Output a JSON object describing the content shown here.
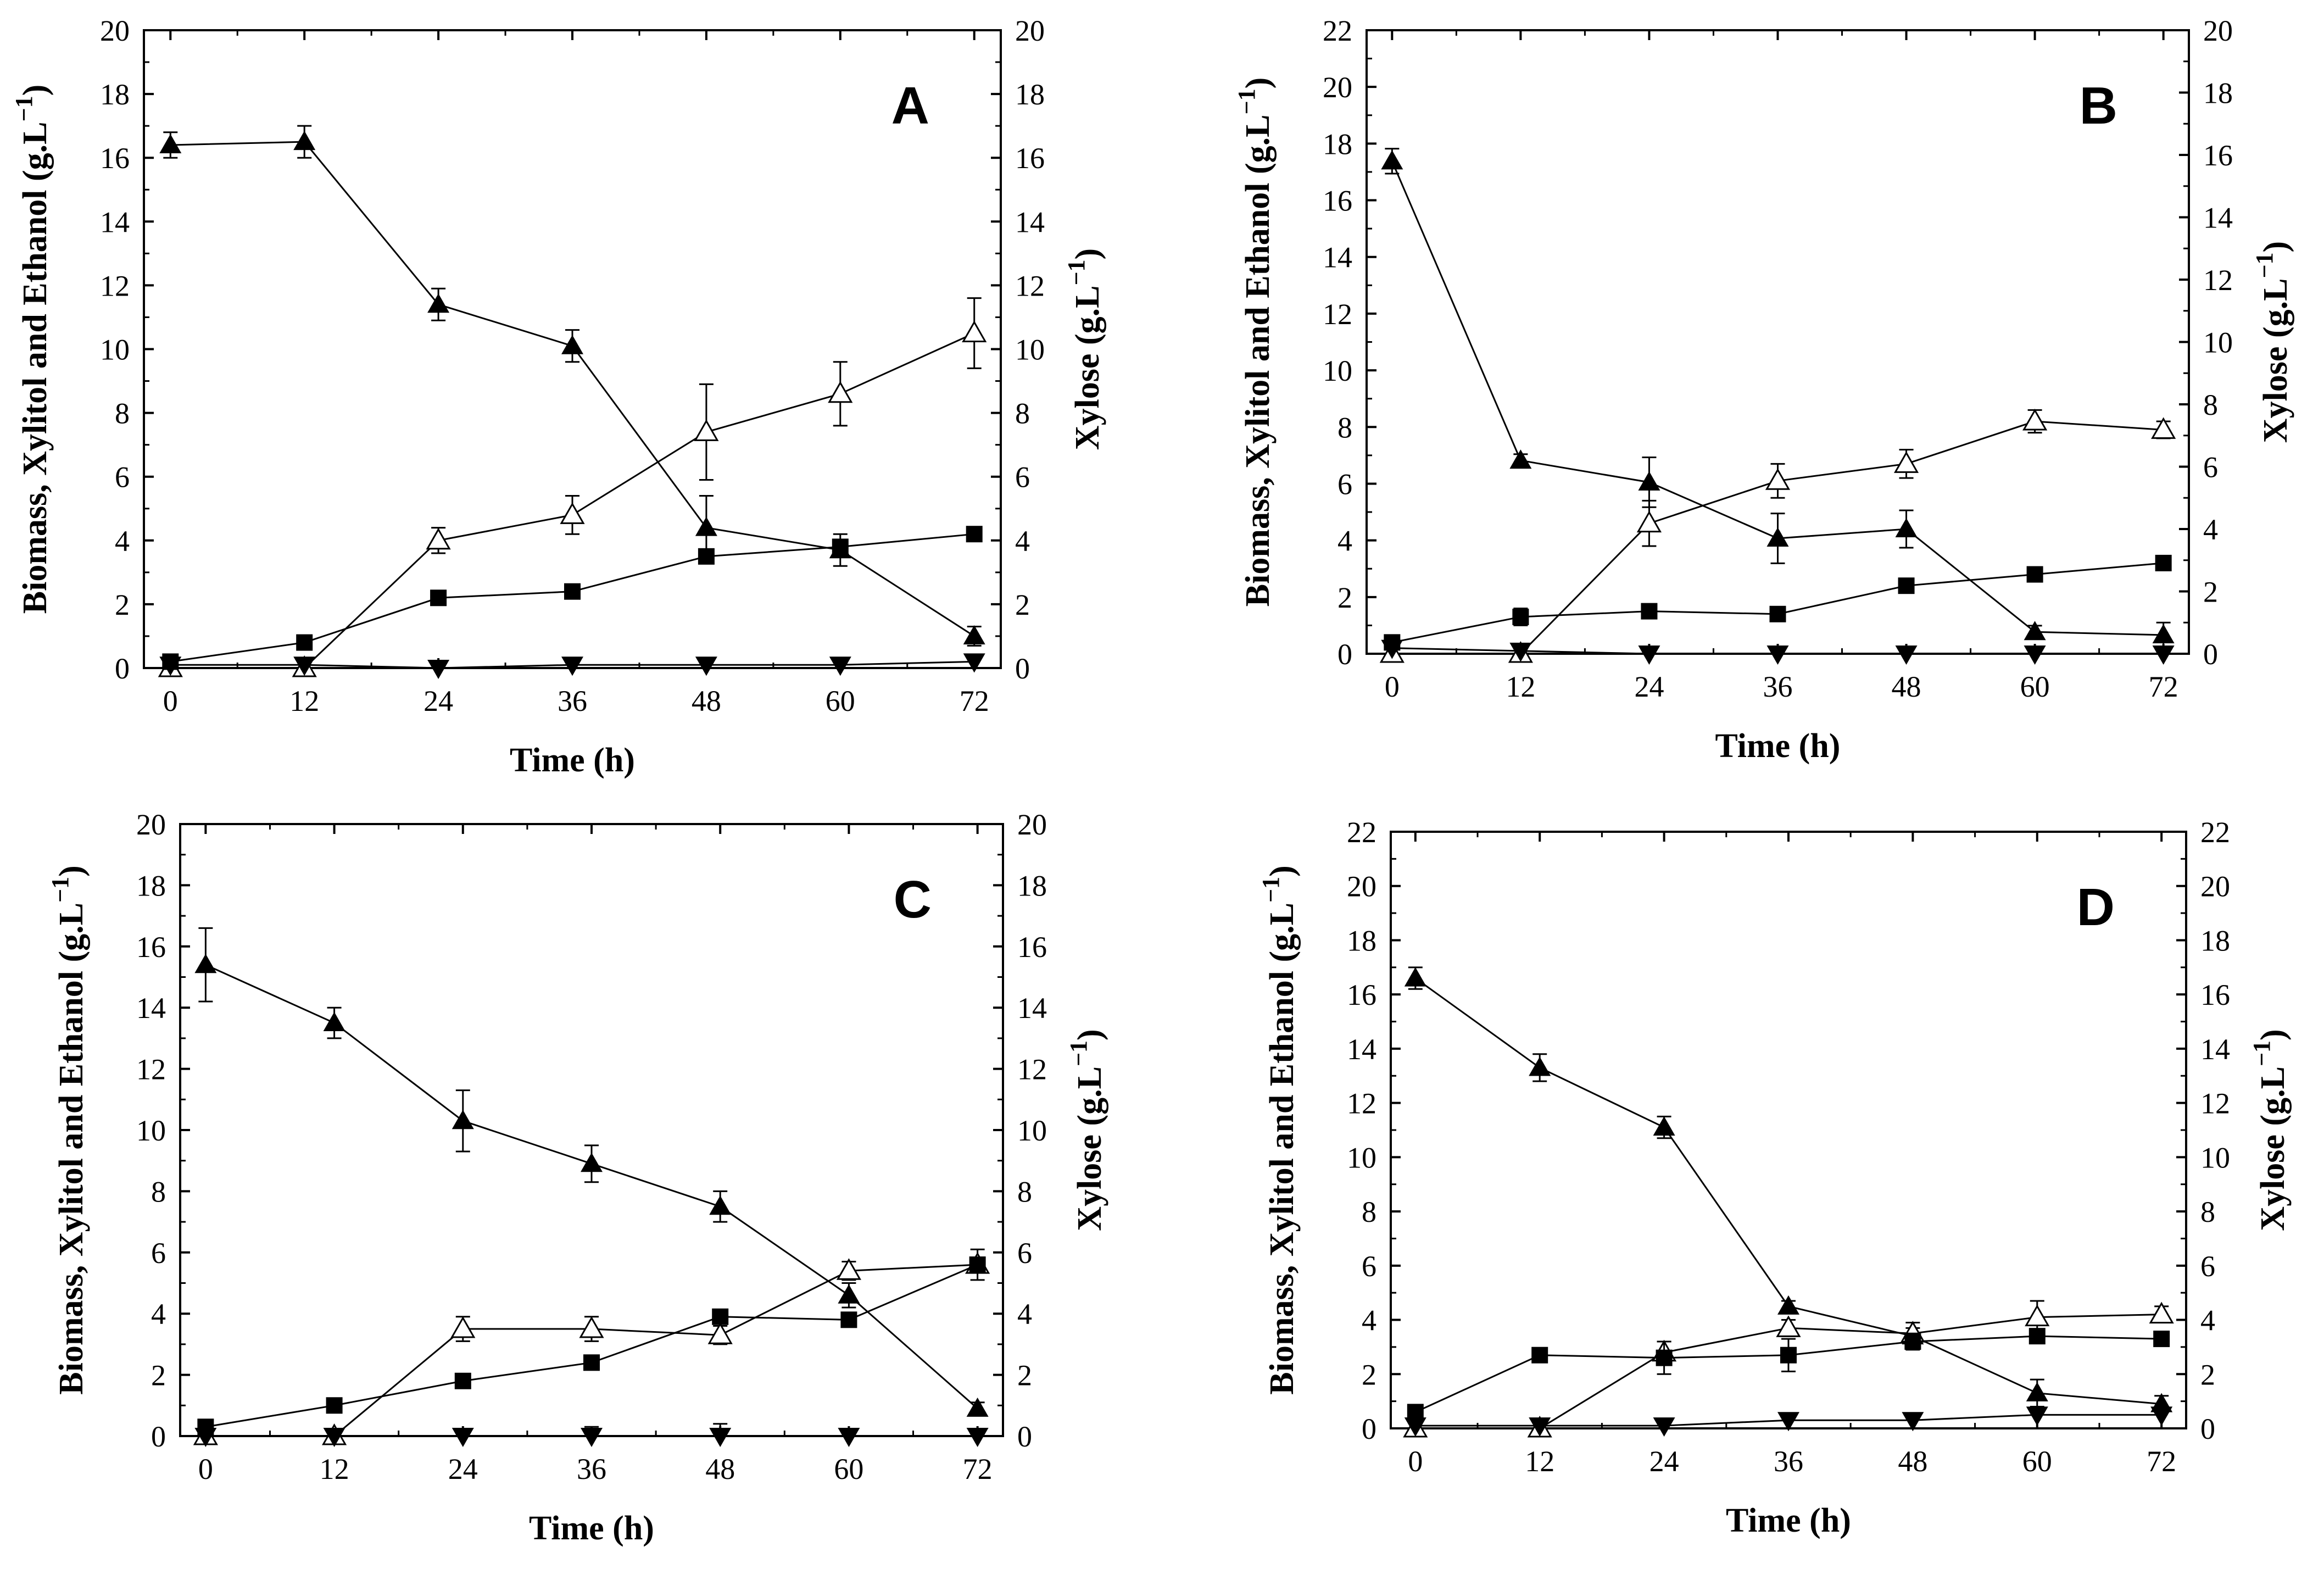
{
  "chart_data": [
    {
      "type": "line",
      "panel_label": "A",
      "xlabel": "Time (h)",
      "ylabel_left": "Biomass, Xylitol and Ethanol (g.L",
      "ylabel_right": "Xylose (g.L",
      "unit_exponent": "−1",
      "unit_close": ")",
      "x": [
        0,
        12,
        24,
        36,
        48,
        60,
        72
      ],
      "x_ticks": [
        "0",
        "12",
        "24",
        "36",
        "48",
        "60",
        "72"
      ],
      "ylim_left": [
        0,
        20
      ],
      "ylim_right": [
        0,
        20
      ],
      "y_ticks_left": [
        "0",
        "2",
        "4",
        "6",
        "8",
        "10",
        "12",
        "14",
        "16",
        "18",
        "20"
      ],
      "y_ticks_right": [
        "0",
        "2",
        "4",
        "6",
        "8",
        "10",
        "12",
        "14",
        "16",
        "18",
        "20"
      ],
      "series": [
        {
          "name": "Xylose",
          "marker": "filled-triangle",
          "axis": "right",
          "values": [
            16.4,
            16.5,
            11.4,
            10.1,
            4.4,
            3.7,
            1.0
          ],
          "errors": [
            0.4,
            0.5,
            0.5,
            0.5,
            1.0,
            0.5,
            0.3
          ]
        },
        {
          "name": "Xylitol",
          "marker": "open-triangle",
          "axis": "left",
          "values": [
            0.0,
            0.0,
            4.0,
            4.8,
            7.4,
            8.6,
            10.5
          ],
          "errors": [
            0.0,
            0.0,
            0.4,
            0.6,
            1.5,
            1.0,
            1.1
          ]
        },
        {
          "name": "Biomass",
          "marker": "filled-square",
          "axis": "left",
          "values": [
            0.2,
            0.8,
            2.2,
            2.4,
            3.5,
            3.8,
            4.2
          ],
          "errors": [
            0.1,
            0.1,
            0.1,
            0.1,
            0.1,
            0.2,
            0.1
          ]
        },
        {
          "name": "Ethanol",
          "marker": "filled-inverted-triangle",
          "axis": "left",
          "values": [
            0.1,
            0.1,
            0.0,
            0.1,
            0.1,
            0.1,
            0.2
          ],
          "errors": [
            0,
            0,
            0,
            0,
            0,
            0,
            0
          ]
        }
      ]
    },
    {
      "type": "line",
      "panel_label": "B",
      "xlabel": "Time (h)",
      "ylabel_left": "Biomass, Xylitol and Ethanol (g.L",
      "ylabel_right": "Xylose (g.L",
      "unit_exponent": "−1",
      "unit_close": ")",
      "x": [
        0,
        12,
        24,
        36,
        48,
        60,
        72
      ],
      "x_ticks": [
        "0",
        "12",
        "24",
        "36",
        "48",
        "60",
        "72"
      ],
      "ylim_left": [
        0,
        22
      ],
      "ylim_right": [
        0,
        20
      ],
      "y_ticks_left": [
        "0",
        "2",
        "4",
        "6",
        "8",
        "10",
        "12",
        "14",
        "16",
        "18",
        "20",
        "22"
      ],
      "y_ticks_right": [
        "0",
        "2",
        "4",
        "6",
        "8",
        "10",
        "12",
        "14",
        "16",
        "18",
        "20"
      ],
      "series": [
        {
          "name": "Xylose",
          "marker": "filled-triangle",
          "axis": "right",
          "values": [
            15.8,
            6.2,
            5.5,
            3.7,
            4.0,
            0.7,
            0.6
          ],
          "errors": [
            0.4,
            0.2,
            0.8,
            0.8,
            0.6,
            0.2,
            0.4
          ]
        },
        {
          "name": "Xylitol",
          "marker": "open-triangle",
          "axis": "left",
          "values": [
            0.0,
            0.0,
            4.6,
            6.1,
            6.7,
            8.2,
            7.9
          ],
          "errors": [
            0.0,
            0.0,
            0.8,
            0.6,
            0.5,
            0.4,
            0.3
          ]
        },
        {
          "name": "Biomass",
          "marker": "filled-square",
          "axis": "left",
          "values": [
            0.4,
            1.3,
            1.5,
            1.4,
            2.4,
            2.8,
            3.2
          ],
          "errors": [
            0.2,
            0.3,
            0.1,
            0.1,
            0.2,
            0.1,
            0.1
          ]
        },
        {
          "name": "Ethanol",
          "marker": "filled-inverted-triangle",
          "axis": "left",
          "values": [
            0.2,
            0.1,
            0.0,
            0.0,
            0.0,
            0.0,
            0.0
          ],
          "errors": [
            0,
            0,
            0,
            0,
            0,
            0,
            0
          ]
        }
      ]
    },
    {
      "type": "line",
      "panel_label": "C",
      "xlabel": "Time (h)",
      "ylabel_left": "Biomass, Xylitol and Ethanol (g.L",
      "ylabel_right": "Xylose (g.L",
      "unit_exponent": "−1",
      "unit_close": ")",
      "x": [
        0,
        12,
        24,
        36,
        48,
        60,
        72
      ],
      "x_ticks": [
        "0",
        "12",
        "24",
        "36",
        "48",
        "60",
        "72"
      ],
      "ylim_left": [
        0,
        20
      ],
      "ylim_right": [
        0,
        20
      ],
      "y_ticks_left": [
        "0",
        "2",
        "4",
        "6",
        "8",
        "10",
        "12",
        "14",
        "16",
        "18",
        "20"
      ],
      "y_ticks_right": [
        "0",
        "2",
        "4",
        "6",
        "8",
        "10",
        "12",
        "14",
        "16",
        "18",
        "20"
      ],
      "series": [
        {
          "name": "Xylose",
          "marker": "filled-triangle",
          "axis": "right",
          "values": [
            15.4,
            13.5,
            10.3,
            8.9,
            7.5,
            4.6,
            0.9
          ],
          "errors": [
            1.2,
            0.5,
            1.0,
            0.6,
            0.5,
            0.4,
            0.2
          ]
        },
        {
          "name": "Xylitol",
          "marker": "open-triangle",
          "axis": "left",
          "values": [
            0.0,
            0.0,
            3.5,
            3.5,
            3.3,
            5.4,
            5.6
          ],
          "errors": [
            0.0,
            0.0,
            0.4,
            0.4,
            0.3,
            0.3,
            0.5
          ]
        },
        {
          "name": "Biomass",
          "marker": "filled-square",
          "axis": "left",
          "values": [
            0.3,
            1.0,
            1.8,
            2.4,
            3.9,
            3.8,
            5.6
          ],
          "errors": [
            0.1,
            0.1,
            0.1,
            0.1,
            0.1,
            0.2,
            0.2
          ]
        },
        {
          "name": "Ethanol",
          "marker": "filled-inverted-triangle",
          "axis": "left",
          "values": [
            0.0,
            0.0,
            0.0,
            0.0,
            0.0,
            0.0,
            0.0
          ],
          "errors": [
            0,
            0,
            0.1,
            0.3,
            0.4,
            0,
            0
          ]
        }
      ]
    },
    {
      "type": "line",
      "panel_label": "D",
      "xlabel": "Time (h)",
      "ylabel_left": "Biomass, Xylitol and Ethanol (g.L",
      "ylabel_right": "Xylose (g.L",
      "unit_exponent": "−1",
      "unit_close": ")",
      "x": [
        0,
        12,
        24,
        36,
        48,
        60,
        72
      ],
      "x_ticks": [
        "0",
        "12",
        "24",
        "36",
        "48",
        "60",
        "72"
      ],
      "ylim_left": [
        0,
        22
      ],
      "ylim_right": [
        0,
        22
      ],
      "y_ticks_left": [
        "0",
        "2",
        "4",
        "6",
        "8",
        "10",
        "12",
        "14",
        "16",
        "18",
        "20",
        "22"
      ],
      "y_ticks_right": [
        "0",
        "2",
        "4",
        "6",
        "8",
        "10",
        "12",
        "14",
        "16",
        "18",
        "20",
        "22"
      ],
      "series": [
        {
          "name": "Xylose",
          "marker": "filled-triangle",
          "axis": "right",
          "values": [
            16.6,
            13.3,
            11.1,
            4.5,
            3.4,
            1.3,
            0.9
          ],
          "errors": [
            0.4,
            0.5,
            0.4,
            0.2,
            0.3,
            0.5,
            0.3
          ]
        },
        {
          "name": "Xylitol",
          "marker": "open-triangle",
          "axis": "left",
          "values": [
            0.0,
            0.0,
            2.8,
            3.7,
            3.5,
            4.1,
            4.2
          ],
          "errors": [
            0.0,
            0.0,
            0.4,
            0.3,
            0.4,
            0.6,
            0.3
          ]
        },
        {
          "name": "Biomass",
          "marker": "filled-square",
          "axis": "left",
          "values": [
            0.6,
            2.7,
            2.6,
            2.7,
            3.2,
            3.4,
            3.3
          ],
          "errors": [
            0.1,
            0.1,
            0.6,
            0.6,
            0.3,
            0.1,
            0.1
          ]
        },
        {
          "name": "Ethanol",
          "marker": "filled-inverted-triangle",
          "axis": "left",
          "values": [
            0.1,
            0.1,
            0.1,
            0.3,
            0.3,
            0.5,
            0.5
          ],
          "errors": [
            0,
            0,
            0,
            0,
            0,
            0,
            0
          ]
        }
      ]
    }
  ]
}
